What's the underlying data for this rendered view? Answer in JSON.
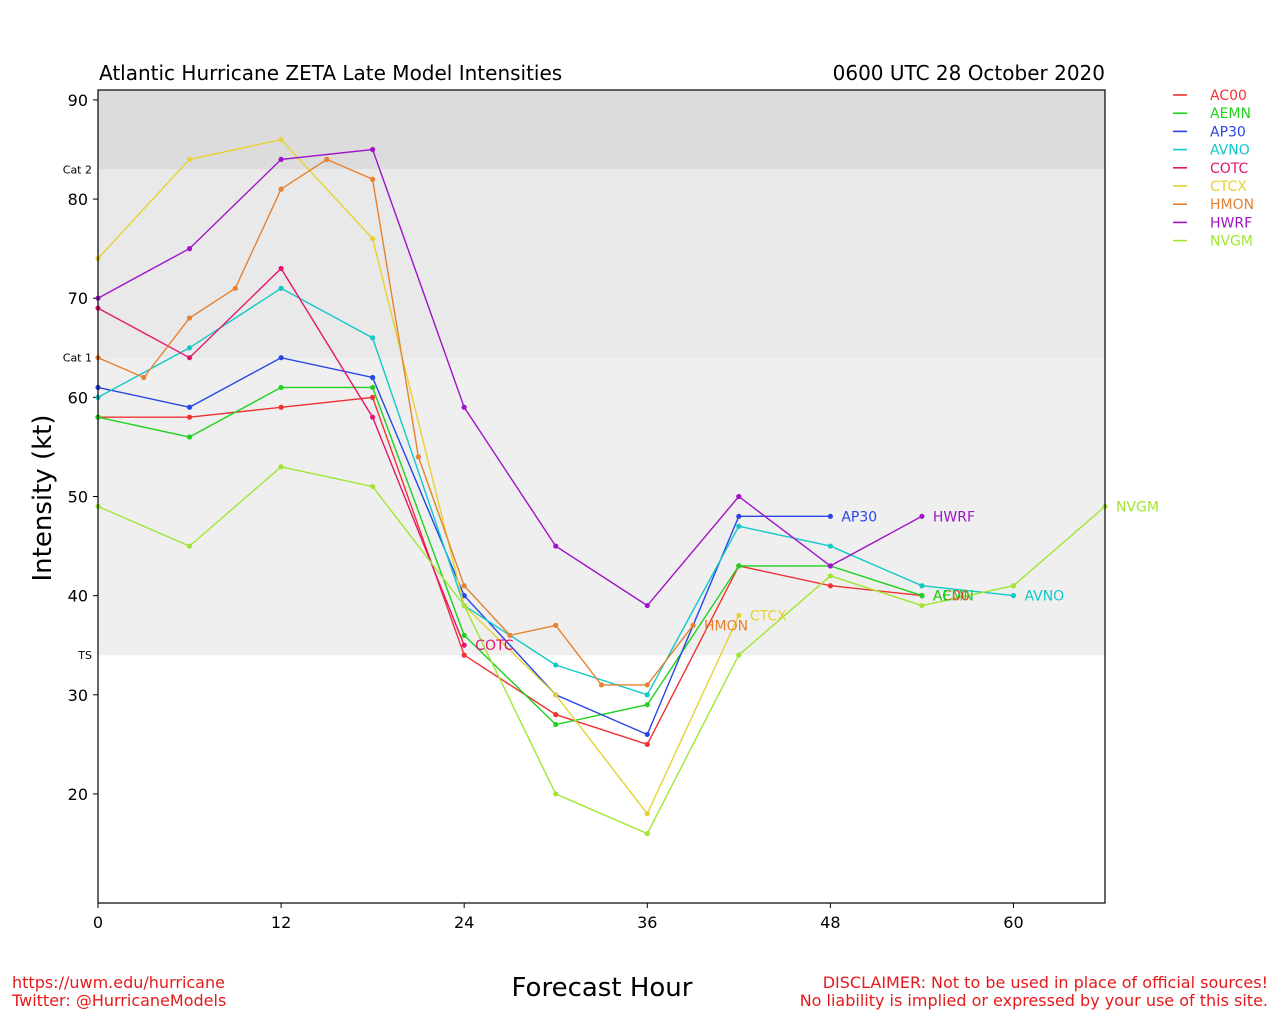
{
  "chart_data": {
    "type": "line",
    "title": "Atlantic Hurricane ZETA Late Model Intensities",
    "subtitle": "0600 UTC 28 October 2020",
    "xlabel": "Forecast Hour",
    "ylabel": "Intensity (kt)",
    "xlim": [
      0,
      66
    ],
    "ylim": [
      9,
      91
    ],
    "xticks": [
      0,
      12,
      24,
      36,
      48,
      60
    ],
    "yticks": [
      20,
      30,
      40,
      50,
      60,
      70,
      80,
      90
    ],
    "bands": [
      {
        "label": "TS",
        "from": 34,
        "to": 64,
        "color": "#efefef"
      },
      {
        "label": "Cat 1",
        "from": 64,
        "to": 83,
        "color": "#e9e9e9"
      },
      {
        "label": "Cat 2",
        "from": 83,
        "to": 91,
        "color": "#dcdcdc"
      }
    ],
    "series": [
      {
        "name": "AC00",
        "color": "#f03232",
        "points": [
          [
            0,
            58
          ],
          [
            6,
            58
          ],
          [
            12,
            59
          ],
          [
            18,
            60
          ],
          [
            24,
            34
          ],
          [
            30,
            28
          ],
          [
            36,
            25
          ],
          [
            42,
            43
          ],
          [
            48,
            41
          ],
          [
            54,
            40
          ]
        ]
      },
      {
        "name": "AEMN",
        "color": "#1ed21e",
        "points": [
          [
            0,
            58
          ],
          [
            6,
            56
          ],
          [
            12,
            61
          ],
          [
            18,
            61
          ],
          [
            24,
            36
          ],
          [
            30,
            27
          ],
          [
            36,
            29
          ],
          [
            42,
            43
          ],
          [
            48,
            43
          ],
          [
            54,
            40
          ]
        ]
      },
      {
        "name": "AP30",
        "color": "#2846e6",
        "points": [
          [
            0,
            61
          ],
          [
            6,
            59
          ],
          [
            12,
            64
          ],
          [
            18,
            62
          ],
          [
            24,
            40
          ],
          [
            30,
            30
          ],
          [
            36,
            26
          ],
          [
            42,
            48
          ],
          [
            48,
            48
          ]
        ]
      },
      {
        "name": "AVNO",
        "color": "#14c8c8",
        "points": [
          [
            0,
            60
          ],
          [
            6,
            65
          ],
          [
            12,
            71
          ],
          [
            18,
            66
          ],
          [
            24,
            39
          ],
          [
            30,
            33
          ],
          [
            36,
            30
          ],
          [
            42,
            47
          ],
          [
            48,
            45
          ],
          [
            54,
            41
          ],
          [
            60,
            40
          ]
        ]
      },
      {
        "name": "COTC",
        "color": "#e6146e",
        "points": [
          [
            0,
            69
          ],
          [
            6,
            64
          ],
          [
            12,
            73
          ],
          [
            18,
            58
          ],
          [
            24,
            35
          ]
        ]
      },
      {
        "name": "CTCX",
        "color": "#e6d232",
        "points": [
          [
            0,
            74
          ],
          [
            6,
            84
          ],
          [
            12,
            86
          ],
          [
            18,
            76
          ],
          [
            24,
            39
          ],
          [
            30,
            30
          ],
          [
            36,
            18
          ],
          [
            42,
            38
          ]
        ]
      },
      {
        "name": "HMON",
        "color": "#e68232",
        "points": [
          [
            0,
            64
          ],
          [
            3,
            62
          ],
          [
            6,
            68
          ],
          [
            9,
            71
          ],
          [
            12,
            81
          ],
          [
            15,
            84
          ],
          [
            18,
            82
          ],
          [
            21,
            54
          ],
          [
            24,
            41
          ],
          [
            27,
            36
          ],
          [
            30,
            37
          ],
          [
            33,
            31
          ],
          [
            36,
            31
          ],
          [
            39,
            37
          ]
        ]
      },
      {
        "name": "HWRF",
        "color": "#a014c8",
        "points": [
          [
            0,
            70
          ],
          [
            6,
            75
          ],
          [
            12,
            84
          ],
          [
            18,
            85
          ],
          [
            24,
            59
          ],
          [
            30,
            45
          ],
          [
            36,
            39
          ],
          [
            42,
            50
          ],
          [
            48,
            43
          ],
          [
            54,
            48
          ]
        ]
      },
      {
        "name": "NVGM",
        "color": "#a0e632",
        "points": [
          [
            0,
            49
          ],
          [
            6,
            45
          ],
          [
            12,
            53
          ],
          [
            18,
            51
          ],
          [
            24,
            39
          ],
          [
            30,
            20
          ],
          [
            36,
            16
          ],
          [
            42,
            34
          ],
          [
            48,
            42
          ],
          [
            54,
            39
          ],
          [
            60,
            41
          ],
          [
            66,
            49
          ]
        ]
      }
    ],
    "end_labels": [
      {
        "name": "AC00",
        "x": 54,
        "y": 40
      },
      {
        "name": "AEMN",
        "x": 54,
        "y": 40
      },
      {
        "name": "AP30",
        "x": 48,
        "y": 48
      },
      {
        "name": "AVNO",
        "x": 60,
        "y": 40
      },
      {
        "name": "COTC",
        "x": 24,
        "y": 35
      },
      {
        "name": "CTCX",
        "x": 42,
        "y": 38
      },
      {
        "name": "HMON",
        "x": 39,
        "y": 37
      },
      {
        "name": "HWRF",
        "x": 54,
        "y": 48
      },
      {
        "name": "NVGM",
        "x": 66,
        "y": 49
      }
    ],
    "legend_position": "top-right"
  },
  "footer": {
    "left_line1": "https://uwm.edu/hurricane",
    "left_line2": "Twitter: @HurricaneModels",
    "right_line1": "DISCLAIMER: Not to be used in place of official sources!",
    "right_line2": "No liability is implied or expressed by your use of this site."
  }
}
